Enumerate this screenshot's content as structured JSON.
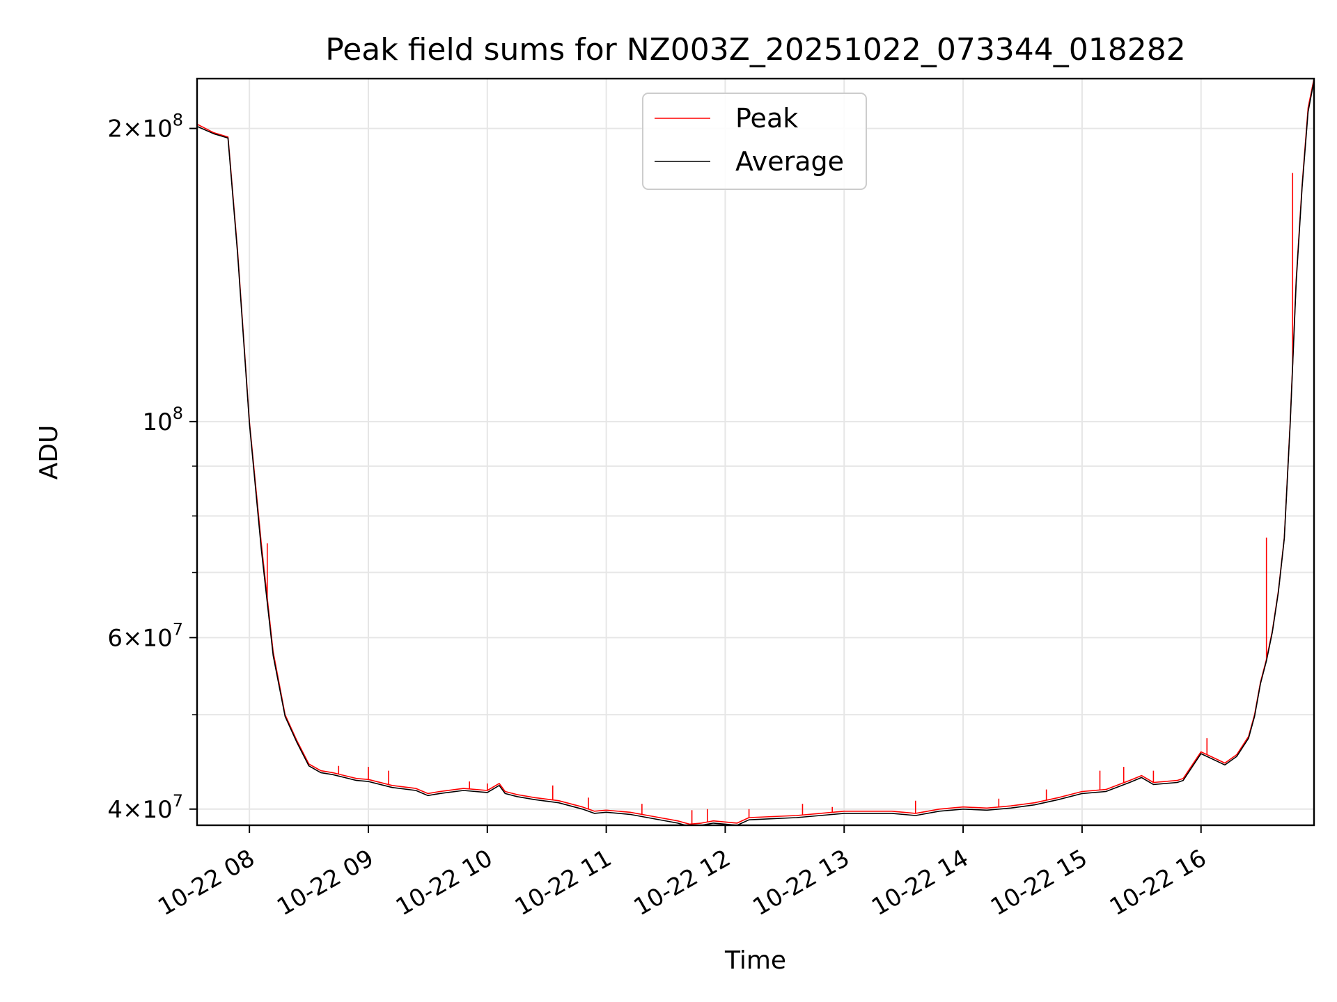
{
  "chart_data": {
    "type": "line",
    "title": "Peak field sums for NZ003Z_20251022_073344_018282",
    "xlabel": "Time",
    "ylabel": "ADU",
    "x_unit": "hours on 2025-10-22",
    "xlim": [
      7.56,
      16.95
    ],
    "ylim": [
      38500000,
      225000000
    ],
    "yscale": "log",
    "grid": true,
    "legend_position": "top-center",
    "x_ticks": [
      {
        "value": 8,
        "label": "10-22 08"
      },
      {
        "value": 9,
        "label": "10-22 09"
      },
      {
        "value": 10,
        "label": "10-22 10"
      },
      {
        "value": 11,
        "label": "10-22 11"
      },
      {
        "value": 12,
        "label": "10-22 12"
      },
      {
        "value": 13,
        "label": "10-22 13"
      },
      {
        "value": 14,
        "label": "10-22 14"
      },
      {
        "value": 15,
        "label": "10-22 15"
      },
      {
        "value": 16,
        "label": "10-22 16"
      }
    ],
    "y_ticks": [
      {
        "value": 40000000,
        "mantissa": "4",
        "exponent": "7"
      },
      {
        "value": 60000000,
        "mantissa": "6",
        "exponent": "7"
      },
      {
        "value": 100000000,
        "mantissa": "",
        "exponent": "8"
      },
      {
        "value": 200000000,
        "mantissa": "2",
        "exponent": "8"
      }
    ],
    "y_minor_ticks": [
      50000000,
      70000000,
      80000000,
      90000000
    ],
    "times_symbol": "×",
    "base": "10",
    "series": [
      {
        "name": "Peak",
        "color": "#ff0000",
        "x": [
          7.56,
          7.7,
          7.82,
          7.83,
          7.9,
          8.0,
          8.1,
          8.2,
          8.3,
          8.4,
          8.5,
          8.6,
          8.7,
          8.8,
          8.9,
          9.0,
          9.2,
          9.4,
          9.5,
          9.6,
          9.8,
          10.0,
          10.1,
          10.15,
          10.25,
          10.4,
          10.6,
          10.8,
          10.9,
          11.0,
          11.2,
          11.4,
          11.6,
          11.7,
          11.8,
          11.9,
          12.0,
          12.1,
          12.2,
          12.4,
          12.6,
          12.8,
          13.0,
          13.2,
          13.4,
          13.6,
          13.8,
          14.0,
          14.2,
          14.4,
          14.6,
          14.8,
          15.0,
          15.2,
          15.4,
          15.5,
          15.6,
          15.8,
          15.85,
          16.0,
          16.1,
          16.2,
          16.3,
          16.4,
          16.45,
          16.5,
          16.55,
          16.6,
          16.65,
          16.7,
          16.75,
          16.8,
          16.85,
          16.9,
          16.95
        ],
        "values": [
          202000000,
          198000000,
          196000000,
          190000000,
          150000000,
          100000000,
          75000000,
          58000000,
          50000000,
          47000000,
          44500000,
          43800000,
          43600000,
          43300000,
          43000000,
          42900000,
          42300000,
          42000000,
          41500000,
          41700000,
          42000000,
          41800000,
          42500000,
          41700000,
          41400000,
          41100000,
          40800000,
          40200000,
          39800000,
          39900000,
          39700000,
          39300000,
          38900000,
          38600000,
          38700000,
          38900000,
          38800000,
          38700000,
          39200000,
          39300000,
          39400000,
          39600000,
          39800000,
          39800000,
          39800000,
          39600000,
          40000000,
          40200000,
          40100000,
          40300000,
          40600000,
          41100000,
          41700000,
          41900000,
          42800000,
          43300000,
          42600000,
          42800000,
          43000000,
          45800000,
          45200000,
          44600000,
          45500000,
          47500000,
          50000000,
          54000000,
          57000000,
          61000000,
          67000000,
          76000000,
          100000000,
          140000000,
          175000000,
          210000000,
          225000000
        ],
        "spikes": [
          {
            "x": 8.15,
            "value": 75000000
          },
          {
            "x": 8.75,
            "value": 44300000
          },
          {
            "x": 9.0,
            "value": 44200000
          },
          {
            "x": 9.17,
            "value": 43800000
          },
          {
            "x": 9.85,
            "value": 42700000
          },
          {
            "x": 10.0,
            "value": 42500000
          },
          {
            "x": 10.55,
            "value": 42300000
          },
          {
            "x": 10.85,
            "value": 41100000
          },
          {
            "x": 11.3,
            "value": 40500000
          },
          {
            "x": 11.72,
            "value": 39900000
          },
          {
            "x": 11.85,
            "value": 40000000
          },
          {
            "x": 12.2,
            "value": 40000000
          },
          {
            "x": 12.65,
            "value": 40500000
          },
          {
            "x": 12.9,
            "value": 40200000
          },
          {
            "x": 13.6,
            "value": 40800000
          },
          {
            "x": 14.3,
            "value": 41000000
          },
          {
            "x": 14.7,
            "value": 41900000
          },
          {
            "x": 15.15,
            "value": 43800000
          },
          {
            "x": 15.35,
            "value": 44200000
          },
          {
            "x": 15.6,
            "value": 43800000
          },
          {
            "x": 16.05,
            "value": 47300000
          },
          {
            "x": 16.55,
            "value": 76000000
          },
          {
            "x": 16.77,
            "value": 180000000
          },
          {
            "x": 16.91,
            "value": 213000000
          }
        ]
      },
      {
        "name": "Average",
        "color": "#000000",
        "x": [
          7.56,
          7.7,
          7.82,
          7.83,
          7.9,
          8.0,
          8.1,
          8.2,
          8.3,
          8.4,
          8.5,
          8.6,
          8.7,
          8.8,
          8.9,
          9.0,
          9.2,
          9.4,
          9.5,
          9.6,
          9.8,
          10.0,
          10.1,
          10.15,
          10.25,
          10.4,
          10.6,
          10.8,
          10.9,
          11.0,
          11.2,
          11.4,
          11.6,
          11.7,
          11.8,
          11.9,
          12.0,
          12.1,
          12.2,
          12.4,
          12.6,
          12.8,
          13.0,
          13.2,
          13.4,
          13.6,
          13.8,
          14.0,
          14.2,
          14.4,
          14.6,
          14.8,
          15.0,
          15.2,
          15.4,
          15.5,
          15.6,
          15.8,
          15.85,
          16.0,
          16.1,
          16.2,
          16.3,
          16.4,
          16.45,
          16.5,
          16.55,
          16.6,
          16.65,
          16.7,
          16.75,
          16.8,
          16.85,
          16.9,
          16.95
        ],
        "values": [
          201000000,
          197500000,
          195500000,
          189000000,
          149000000,
          99500000,
          74000000,
          57500000,
          49800000,
          46800000,
          44300000,
          43600000,
          43400000,
          43100000,
          42800000,
          42700000,
          42100000,
          41800000,
          41300000,
          41500000,
          41800000,
          41600000,
          42300000,
          41500000,
          41200000,
          40900000,
          40600000,
          40000000,
          39600000,
          39700000,
          39500000,
          39100000,
          38700000,
          38400000,
          38500000,
          38700000,
          38600000,
          38500000,
          39000000,
          39100000,
          39200000,
          39400000,
          39600000,
          39600000,
          39600000,
          39400000,
          39800000,
          40000000,
          39900000,
          40100000,
          40400000,
          40900000,
          41500000,
          41700000,
          42600000,
          43100000,
          42400000,
          42600000,
          42800000,
          45600000,
          45000000,
          44400000,
          45300000,
          47300000,
          49800000,
          53800000,
          56800000,
          60800000,
          66800000,
          75800000,
          99500000,
          139000000,
          174000000,
          208000000,
          224000000
        ]
      }
    ]
  }
}
